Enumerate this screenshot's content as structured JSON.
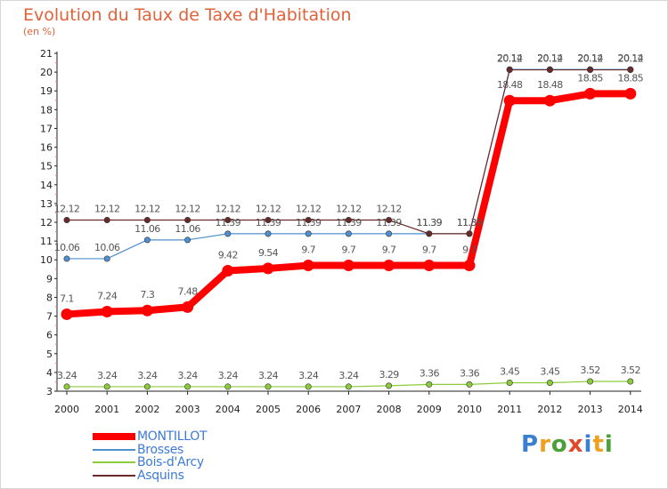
{
  "title": "Evolution du Taux de Taxe d'Habitation",
  "subtitle": "(en %)",
  "logo": {
    "letters": [
      "P",
      "r",
      "o",
      "x",
      "i",
      "t",
      "i"
    ],
    "colors": [
      "#3a7fd0",
      "#f0a020",
      "#4aa03a",
      "#e04a2a",
      "#3a7fd0",
      "#f0a020",
      "#4aa03a"
    ]
  },
  "chart_data": {
    "type": "line",
    "title": "Evolution du Taux de Taxe d'Habitation",
    "ylabel": "(en %)",
    "xlabel": "",
    "x": [
      "2000",
      "2001",
      "2002",
      "2003",
      "2004",
      "2005",
      "2006",
      "2007",
      "2008",
      "2009",
      "2010",
      "2011",
      "2012",
      "2013",
      "2014"
    ],
    "ylim": [
      3,
      21
    ],
    "yticks": [
      "3",
      "4",
      "5",
      "6",
      "7",
      "8",
      "9",
      "10",
      "11",
      "12",
      "13",
      "14",
      "15",
      "16",
      "17",
      "18",
      "19",
      "20",
      "21"
    ],
    "grid": false,
    "legend_position": "bottom-left",
    "series": [
      {
        "name": "MONTILLOT",
        "color": "#ff0000",
        "values": [
          7.1,
          7.24,
          7.3,
          7.48,
          9.42,
          9.54,
          9.7,
          9.7,
          9.7,
          9.7,
          9.7,
          18.48,
          18.48,
          18.85,
          18.85
        ],
        "labels": [
          "7.1",
          "7.24",
          "7.3",
          "7.48",
          "9.42",
          "9.54",
          "9.7",
          "9.7",
          "9.7",
          "9.7",
          "9.7",
          "18.48",
          "18.48",
          "18.85",
          "18.85"
        ]
      },
      {
        "name": "Brosses",
        "color": "#4e8fcf",
        "values": [
          10.06,
          10.06,
          11.06,
          11.06,
          11.39,
          11.39,
          11.39,
          11.39,
          11.39,
          11.39,
          11.39,
          20.14,
          20.14,
          20.14,
          20.14
        ],
        "labels": [
          "10.06",
          "10.06",
          "11.06",
          "11.06",
          "11.39",
          "11.39",
          "11.39",
          "11.39",
          "11.39",
          "11.39",
          "11.39",
          "20.14",
          "20.14",
          "20.14",
          "20.14"
        ]
      },
      {
        "name": "Bois-d'Arcy",
        "color": "#8ccc3c",
        "values": [
          3.24,
          3.24,
          3.24,
          3.24,
          3.24,
          3.24,
          3.24,
          3.24,
          3.29,
          3.36,
          3.36,
          3.45,
          3.45,
          3.52,
          3.52
        ],
        "labels": [
          "3.24",
          "3.24",
          "3.24",
          "3.24",
          "3.24",
          "3.24",
          "3.24",
          "3.24",
          "3.29",
          "3.36",
          "3.36",
          "3.45",
          "3.45",
          "3.52",
          "3.52"
        ]
      },
      {
        "name": "Asquins",
        "color": "#6b2a2a",
        "values": [
          12.12,
          12.12,
          12.12,
          12.12,
          12.12,
          12.12,
          12.12,
          12.12,
          12.12,
          11.39,
          11.39,
          20.12,
          20.12,
          20.12,
          20.12
        ],
        "labels": [
          "12.12",
          "12.12",
          "12.12",
          "12.12",
          "12.12",
          "12.12",
          "12.12",
          "12.12",
          "12.12",
          "11.39",
          "11.39",
          "20.12",
          "20.12",
          "20.12",
          "20.12"
        ]
      }
    ]
  }
}
